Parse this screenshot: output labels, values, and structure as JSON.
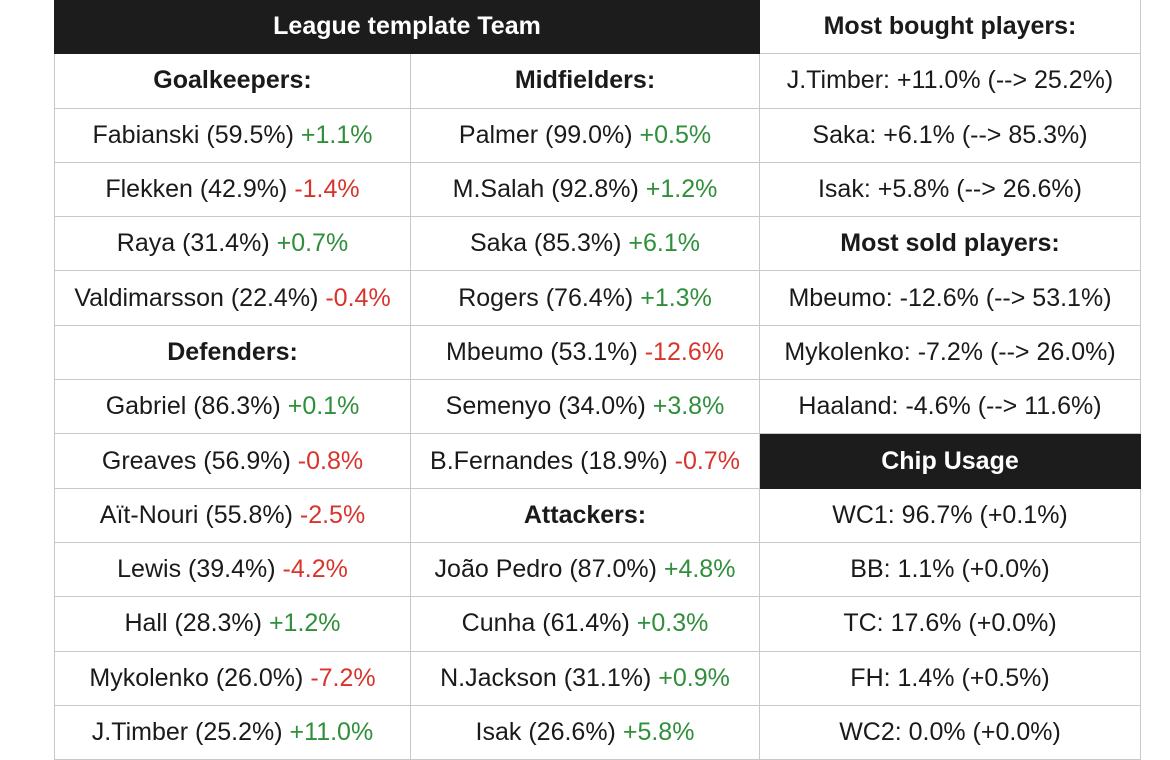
{
  "colors": {
    "header_bg": "#1c1c1c",
    "header_text": "#ffffff",
    "positive": "#2f8f3a",
    "negative": "#d8342c",
    "grid": "#c8c8c8"
  },
  "headers": {
    "template_team": "League template Team",
    "most_bought": "Most bought players:",
    "goalkeepers": "Goalkeepers:",
    "midfielders": "Midfielders:",
    "most_sold": "Most sold players:",
    "defenders": "Defenders:",
    "chip_usage": "Chip Usage",
    "attackers": "Attackers:"
  },
  "goalkeepers": [
    {
      "name": "Fabianski (59.5%)",
      "change": "+1.1%"
    },
    {
      "name": "Flekken (42.9%)",
      "change": "-1.4%"
    },
    {
      "name": "Raya (31.4%)",
      "change": "+0.7%"
    },
    {
      "name": "Valdimarsson (22.4%)",
      "change": "-0.4%"
    }
  ],
  "defenders": [
    {
      "name": "Gabriel (86.3%)",
      "change": "+0.1%"
    },
    {
      "name": "Greaves (56.9%)",
      "change": "-0.8%"
    },
    {
      "name": "Aït-Nouri (55.8%)",
      "change": "-2.5%"
    },
    {
      "name": "Lewis (39.4%)",
      "change": "-4.2%"
    },
    {
      "name": "Hall (28.3%)",
      "change": "+1.2%"
    },
    {
      "name": "Mykolenko (26.0%)",
      "change": "-7.2%"
    },
    {
      "name": "J.Timber (25.2%)",
      "change": "+11.0%"
    }
  ],
  "midfielders": [
    {
      "name": "Palmer (99.0%)",
      "change": "+0.5%"
    },
    {
      "name": "M.Salah (92.8%)",
      "change": "+1.2%"
    },
    {
      "name": "Saka (85.3%)",
      "change": "+6.1%"
    },
    {
      "name": "Rogers (76.4%)",
      "change": "+1.3%"
    },
    {
      "name": "Mbeumo (53.1%)",
      "change": "-12.6%"
    },
    {
      "name": "Semenyo (34.0%)",
      "change": "+3.8%"
    },
    {
      "name": "B.Fernandes (18.9%)",
      "change": "-0.7%"
    }
  ],
  "attackers": [
    {
      "name": "João Pedro (87.0%)",
      "change": "+4.8%"
    },
    {
      "name": "Cunha (61.4%)",
      "change": "+0.3%"
    },
    {
      "name": "N.Jackson (31.1%)",
      "change": "+0.9%"
    },
    {
      "name": "Isak (26.6%)",
      "change": "+5.8%"
    }
  ],
  "most_bought": [
    "J.Timber: +11.0% (--> 25.2%)",
    "Saka: +6.1% (--> 85.3%)",
    "Isak: +5.8% (--> 26.6%)"
  ],
  "most_sold": [
    "Mbeumo: -12.6% (--> 53.1%)",
    "Mykolenko: -7.2% (--> 26.0%)",
    "Haaland: -4.6% (--> 11.6%)"
  ],
  "chips": [
    "WC1: 96.7% (+0.1%)",
    "BB: 1.1% (+0.0%)",
    "TC: 17.6% (+0.0%)",
    "FH: 1.4% (+0.5%)",
    "WC2: 0.0% (+0.0%)"
  ]
}
